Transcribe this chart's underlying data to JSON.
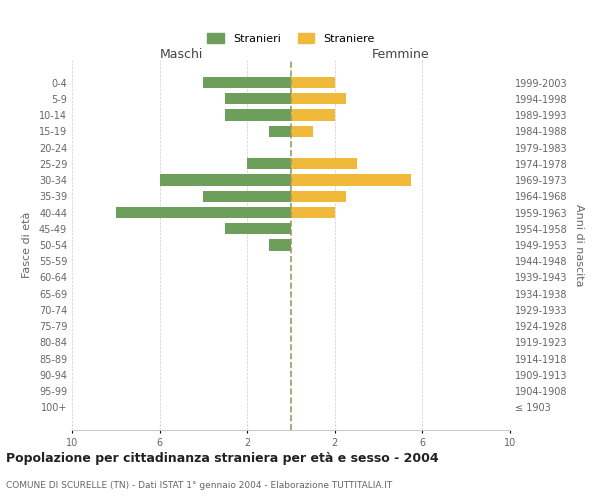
{
  "age_groups": [
    "100+",
    "95-99",
    "90-94",
    "85-89",
    "80-84",
    "75-79",
    "70-74",
    "65-69",
    "60-64",
    "55-59",
    "50-54",
    "45-49",
    "40-44",
    "35-39",
    "30-34",
    "25-29",
    "20-24",
    "15-19",
    "10-14",
    "5-9",
    "0-4"
  ],
  "birth_years": [
    "≤ 1903",
    "1904-1908",
    "1909-1913",
    "1914-1918",
    "1919-1923",
    "1924-1928",
    "1929-1933",
    "1934-1938",
    "1939-1943",
    "1944-1948",
    "1949-1953",
    "1954-1958",
    "1959-1963",
    "1964-1968",
    "1969-1973",
    "1974-1978",
    "1979-1983",
    "1984-1988",
    "1989-1993",
    "1994-1998",
    "1999-2003"
  ],
  "males": [
    0,
    0,
    0,
    0,
    0,
    0,
    0,
    0,
    0,
    0,
    1,
    3,
    8,
    4,
    6,
    2,
    0,
    1,
    3,
    3,
    4
  ],
  "females": [
    0,
    0,
    0,
    0,
    0,
    0,
    0,
    0,
    0,
    0,
    0,
    0,
    2,
    2.5,
    5.5,
    3,
    0,
    1,
    2,
    2.5,
    2
  ],
  "male_color": "#6d9e5a",
  "female_color": "#f0b93a",
  "xlim": 10,
  "title": "Popolazione per cittadinanza straniera per età e sesso - 2004",
  "subtitle": "COMUNE DI SCURELLE (TN) - Dati ISTAT 1° gennaio 2004 - Elaborazione TUTTITALIA.IT",
  "ylabel_left": "Fasce di età",
  "ylabel_right": "Anni di nascita",
  "legend_male": "Stranieri",
  "legend_female": "Straniere",
  "maschi_label": "Maschi",
  "femmine_label": "Femmine",
  "bg_color": "#ffffff",
  "grid_color": "#cccccc",
  "text_color": "#666666",
  "center_line_color": "#999966"
}
